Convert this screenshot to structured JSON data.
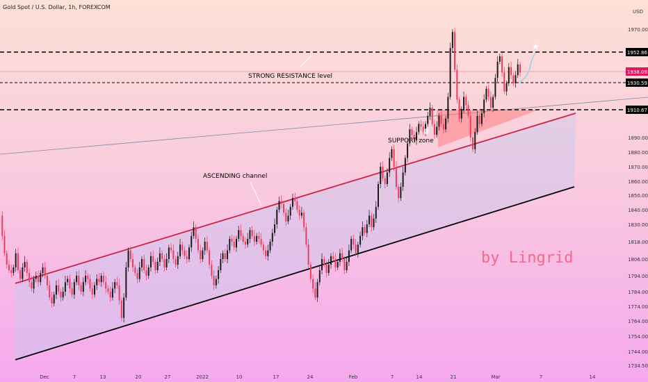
{
  "header": {
    "title": "Gold Spot / U.S. Dollar, 1h, FOREXCOM"
  },
  "axis": {
    "currency": "USD"
  },
  "chart_data": {
    "type": "candlestick",
    "title": "Gold Spot / U.S. Dollar, 1h, FOREXCOM",
    "xlabel": "",
    "ylabel": "USD",
    "ylim": [
      1734.5,
      1978
    ],
    "grid": false,
    "x_tick_labels": [
      "Dec",
      "7",
      "13",
      "20",
      "27",
      "2022",
      "10",
      "17",
      "24",
      "Feb",
      "7",
      "14",
      "21",
      "Mar",
      "7",
      "14"
    ],
    "y_tick_labels": [
      "1970.00",
      "1890.00",
      "1880.00",
      "1870.00",
      "1860.00",
      "1850.00",
      "1840.00",
      "1830.00",
      "1818.00",
      "1806.00",
      "1794.00",
      "1784.00",
      "1774.00",
      "1764.00",
      "1754.00",
      "1744.00",
      "1734.50"
    ],
    "price_levels": [
      {
        "label": "1952.86",
        "value": 1952.86,
        "style": "dashed",
        "color": "#000000"
      },
      {
        "label": "1938.09",
        "value": 1938.09,
        "style": "current",
        "color": "#d81b60"
      },
      {
        "label": "1930.59",
        "value": 1930.59,
        "style": "dashed",
        "color": "#000000"
      },
      {
        "label": "1910.67",
        "value": 1910.67,
        "style": "dashed",
        "color": "#000000"
      }
    ],
    "annotations": [
      {
        "text": "STRONG RESISTANCE level"
      },
      {
        "text": "SUPPORT zone"
      },
      {
        "text": "ASCENDING channel"
      },
      {
        "text": "by Lingrid"
      }
    ],
    "series": [
      {
        "values": [
          1836,
          1822,
          1810,
          1802,
          1798,
          1796,
          1800,
          1810,
          1798,
          1792,
          1800,
          1804,
          1796,
          1790,
          1786,
          1792,
          1794,
          1790,
          1796,
          1800,
          1794,
          1788,
          1780,
          1776,
          1782,
          1788,
          1784,
          1780,
          1784,
          1790,
          1792,
          1786,
          1782,
          1790,
          1794,
          1788,
          1784,
          1790,
          1794,
          1792,
          1786,
          1782,
          1788,
          1792,
          1790,
          1794,
          1790,
          1786,
          1784,
          1780,
          1786,
          1790,
          1788,
          1778,
          1766,
          1780,
          1800,
          1812,
          1806,
          1800,
          1796,
          1792,
          1800,
          1806,
          1798,
          1794,
          1800,
          1808,
          1804,
          1798,
          1804,
          1810,
          1806,
          1800,
          1806,
          1814,
          1812,
          1806,
          1802,
          1808,
          1816,
          1812,
          1808,
          1806,
          1814,
          1822,
          1828,
          1820,
          1812,
          1806,
          1812,
          1818,
          1812,
          1802,
          1794,
          1788,
          1792,
          1798,
          1806,
          1810,
          1806,
          1812,
          1820,
          1818,
          1814,
          1820,
          1826,
          1822,
          1818,
          1816,
          1820,
          1826,
          1822,
          1818,
          1822,
          1820,
          1816,
          1812,
          1808,
          1812,
          1818,
          1824,
          1830,
          1840,
          1846,
          1844,
          1838,
          1832,
          1836,
          1842,
          1848,
          1846,
          1840,
          1836,
          1838,
          1828,
          1816,
          1802,
          1792,
          1786,
          1780,
          1790,
          1798,
          1806,
          1802,
          1796,
          1802,
          1808,
          1806,
          1800,
          1804,
          1810,
          1806,
          1798,
          1804,
          1812,
          1820,
          1816,
          1810,
          1816,
          1822,
          1828,
          1824,
          1830,
          1836,
          1828,
          1834,
          1842,
          1858,
          1870,
          1862,
          1858,
          1866,
          1876,
          1882,
          1870,
          1856,
          1848,
          1856,
          1866,
          1876,
          1886,
          1896,
          1892,
          1888,
          1894,
          1900,
          1898,
          1894,
          1900,
          1906,
          1912,
          1900,
          1892,
          1898,
          1906,
          1900,
          1896,
          1904,
          1920,
          1956,
          1968,
          1940,
          1918,
          1904,
          1910,
          1920,
          1914,
          1906,
          1890,
          1882,
          1894,
          1906,
          1900,
          1908,
          1918,
          1926,
          1920,
          1912,
          1920,
          1934,
          1946,
          1950,
          1938,
          1924,
          1930,
          1942,
          1936,
          1930,
          1936,
          1944,
          1938
        ]
      }
    ]
  }
}
